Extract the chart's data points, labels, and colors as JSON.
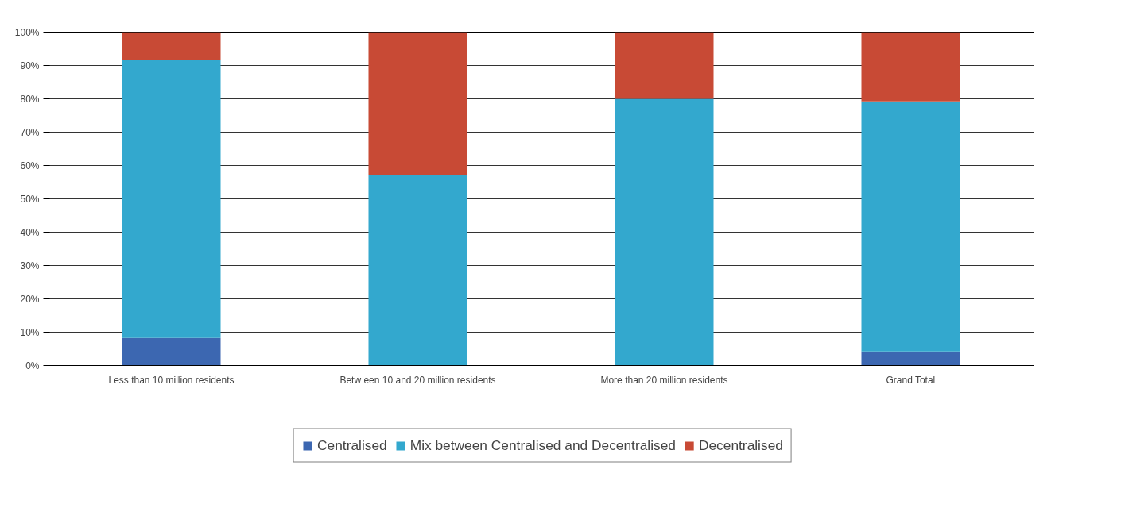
{
  "chart_data": {
    "type": "bar",
    "stacked": true,
    "categories": [
      "Less than 10 million residents",
      "Betw een 10 and 20 million residents",
      "More than 20 million residents",
      "Grand Total"
    ],
    "series": [
      {
        "name": "Centralised",
        "color": "#3c67b1",
        "values": [
          8.3,
          0,
          0,
          4.2
        ]
      },
      {
        "name": "Mix between Centralised and Decentralised",
        "color": "#33a8ce",
        "values": [
          83.4,
          57.1,
          80,
          75
        ]
      },
      {
        "name": "Decentralised",
        "color": "#c84a35",
        "values": [
          8.3,
          42.9,
          20,
          20.8
        ]
      }
    ],
    "ylim": [
      0,
      100
    ],
    "yticks": [
      {
        "value": 0,
        "label": "0%"
      },
      {
        "value": 10,
        "label": "10%"
      },
      {
        "value": 20,
        "label": "20%"
      },
      {
        "value": 30,
        "label": "30%"
      },
      {
        "value": 40,
        "label": "40%"
      },
      {
        "value": 50,
        "label": "50%"
      },
      {
        "value": 60,
        "label": "60%"
      },
      {
        "value": 70,
        "label": "70%"
      },
      {
        "value": 80,
        "label": "80%"
      },
      {
        "value": 90,
        "label": "90%"
      },
      {
        "value": 100,
        "label": "100%"
      }
    ],
    "grid": "y",
    "legend": "bottom"
  }
}
